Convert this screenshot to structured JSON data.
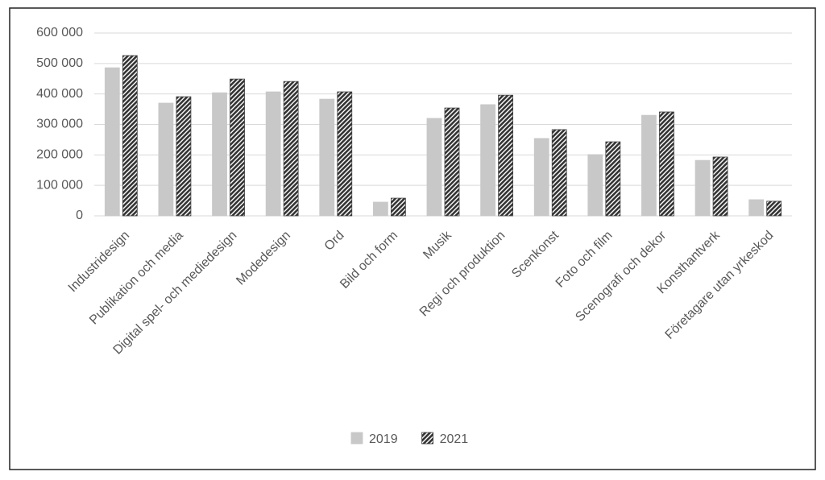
{
  "chart_data": {
    "type": "bar",
    "categories": [
      "Industridesign",
      "Publikation och media",
      "Digital spel- och mediedesign",
      "Modedesign",
      "Ord",
      "Bild och form",
      "Musik",
      "Regi och produktion",
      "Scenkonst",
      "Foto och film",
      "Scenografi och dekor",
      "Konsthantverk",
      "Företagare utan yrkeskod"
    ],
    "series": [
      {
        "name": "2019",
        "color": "#c8c8c8",
        "values": [
          486000,
          370000,
          404000,
          407000,
          383000,
          45000,
          320000,
          365000,
          254000,
          201000,
          330000,
          182000,
          53000
        ]
      },
      {
        "name": "2021",
        "color": "#404040",
        "pattern": "hatch",
        "values": [
          526000,
          391000,
          449000,
          441000,
          407000,
          58000,
          354000,
          396000,
          283000,
          243000,
          341000,
          193000,
          48000
        ]
      }
    ],
    "ylim": [
      0,
      600000
    ],
    "yticks": [
      0,
      {
        "value": 100000,
        "label": "100 000"
      },
      {
        "value": 200000,
        "label": "200 000"
      },
      {
        "value": 300000,
        "label": "300 000"
      },
      {
        "value": 400000,
        "label": "400 000"
      },
      {
        "value": 500000,
        "label": "500 000"
      },
      {
        "value": 600000,
        "label": "600 000"
      }
    ],
    "grid": true,
    "legend": "bottom"
  }
}
